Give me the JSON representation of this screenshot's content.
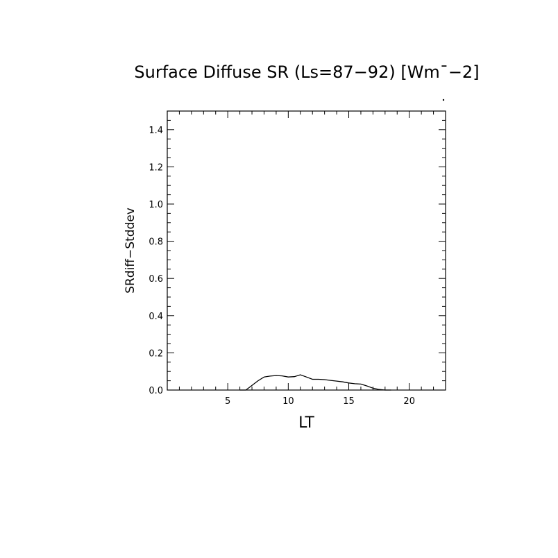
{
  "chart_data": {
    "type": "line",
    "title": "Surface Diffuse SR (Ls=87−92) [Wm¯−2]",
    "xlabel": "LT",
    "ylabel": "SRdiff−Stddev",
    "xlim": [
      0,
      23
    ],
    "ylim": [
      0,
      1.5
    ],
    "x_ticks": [
      5,
      10,
      15,
      20
    ],
    "y_ticks": [
      0.0,
      0.2,
      0.4,
      0.6,
      0.8,
      1.0,
      1.2,
      1.4
    ],
    "grid": false,
    "series": [
      {
        "x": [
          6.0,
          6.5,
          7.5,
          8.0,
          8.5,
          9.0,
          9.5,
          10.0,
          10.5,
          11.0,
          11.5,
          12.0,
          12.5,
          13.0,
          13.5,
          14.0,
          14.5,
          15.0,
          15.5,
          16.0,
          16.5,
          17.0,
          17.5,
          18.0,
          18.5
        ],
        "y": [
          0.0,
          0.0,
          0.05,
          0.07,
          0.075,
          0.078,
          0.076,
          0.07,
          0.072,
          0.082,
          0.07,
          0.058,
          0.058,
          0.056,
          0.052,
          0.048,
          0.044,
          0.038,
          0.034,
          0.032,
          0.022,
          0.01,
          0.003,
          0.0,
          0.0
        ]
      }
    ]
  }
}
